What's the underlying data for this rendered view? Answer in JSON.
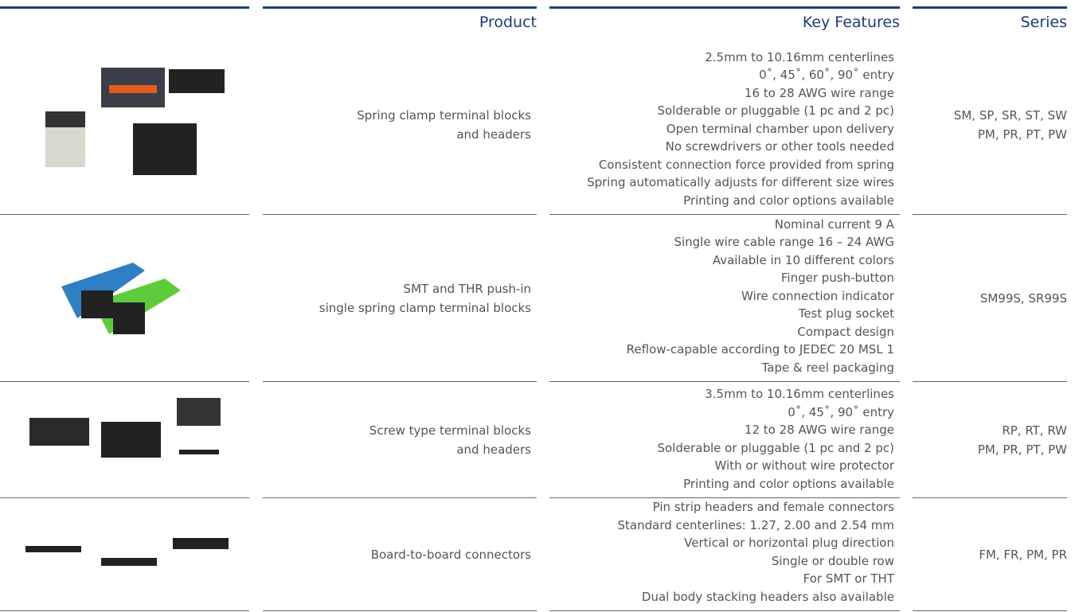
{
  "header": {
    "columns": [
      "Product",
      "Key Features",
      "Series"
    ]
  },
  "rows": [
    {
      "product": [
        "Spring clamp terminal blocks",
        "and headers"
      ],
      "features": [
        "2.5mm to 10.16mm centerlines",
        "0˚, 45˚, 60˚, 90˚ entry",
        "16 to 28 AWG wire range",
        "Solderable or pluggable (1 pc and 2 pc)",
        "Open terminal chamber upon delivery",
        "No screwdrivers or other tools needed",
        "Consistent connection force provided from spring",
        "Spring automatically adjusts for different size wires",
        "Printing and color options available"
      ],
      "series": [
        "SM, SP, SR, ST, SW",
        "PM, PR, PT, PW"
      ]
    },
    {
      "product": [
        "SMT and THR push-in",
        "single spring clamp terminal blocks"
      ],
      "features": [
        "Nominal current 9 A",
        "Single wire cable range 16 – 24 AWG",
        "Available in 10 different colors",
        "Finger push-button",
        "Wire connection indicator",
        "Test plug socket",
        "Compact design",
        "Reflow-capable according to JEDEC 20 MSL 1",
        "Tape & reel packaging"
      ],
      "series": [
        "SM99S, SR99S"
      ]
    },
    {
      "product": [
        "Screw type terminal blocks",
        "and headers"
      ],
      "features": [
        "3.5mm to 10.16mm centerlines",
        "0˚, 45˚, 90˚ entry",
        "12 to 28 AWG wire range",
        "Solderable or pluggable (1 pc and 2 pc)",
        "With or without wire protector",
        "Printing and color options available"
      ],
      "series": [
        "RP, RT, RW",
        "PM, PR, PT, PW"
      ]
    },
    {
      "product": [
        "Board-to-board connectors"
      ],
      "features": [
        "Pin strip headers and female connectors",
        "Standard centerlines: 1.27, 2.00 and 2.54 mm",
        "Vertical or horizontal plug direction",
        "Single or double row",
        "For SMT or THT",
        "Dual body stacking headers also available"
      ],
      "series": [
        "FM, FR, PM, PR"
      ]
    }
  ]
}
